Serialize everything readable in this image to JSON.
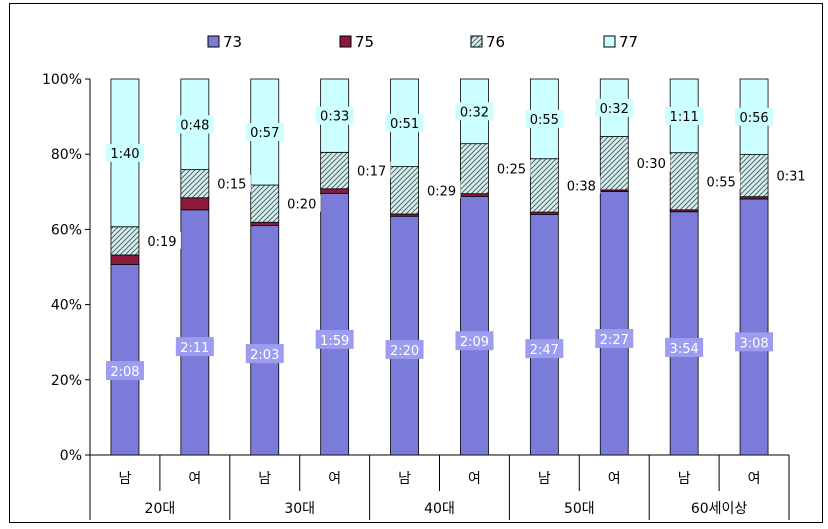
{
  "chart_data": {
    "type": "bar",
    "stacked": true,
    "percent_stacked": true,
    "groups": [
      "20대",
      "30대",
      "40대",
      "50대",
      "60세이상"
    ],
    "categories": [
      "남",
      "여",
      "남",
      "여",
      "남",
      "여",
      "남",
      "여",
      "남",
      "여"
    ],
    "y_ticks": [
      "0%",
      "20%",
      "40%",
      "60%",
      "80%",
      "100%"
    ],
    "ylim": [
      0,
      100
    ],
    "legend_position": "top",
    "series": [
      {
        "name": "73",
        "color": "#7b7bd9",
        "pattern": "solid",
        "values": [
          50.7,
          65.2,
          61.0,
          69.6,
          63.5,
          68.8,
          64.0,
          70.1,
          64.7,
          68.1
        ],
        "labels": [
          "2:08",
          "2:11",
          "2:03",
          "1:59",
          "2:20",
          "2:09",
          "2:47",
          "2:27",
          "3:54",
          "3:08"
        ]
      },
      {
        "name": "75",
        "color": "#8b1a3c",
        "pattern": "solid",
        "values": [
          2.5,
          3.2,
          0.9,
          1.2,
          0.6,
          0.7,
          0.6,
          0.4,
          0.5,
          0.6
        ],
        "labels": [
          "",
          "",
          "",
          "",
          "",
          "",
          "",
          "",
          "",
          ""
        ]
      },
      {
        "name": "76",
        "color": "#cfe8e8",
        "pattern": "hatch",
        "values": [
          7.5,
          7.5,
          9.9,
          9.7,
          12.6,
          13.3,
          14.2,
          14.2,
          15.2,
          11.2
        ],
        "labels": [
          "0:19",
          "0:15",
          "0:20",
          "0:17",
          "0:29",
          "0:25",
          "0:38",
          "0:30",
          "0:55",
          "0:31"
        ]
      },
      {
        "name": "77",
        "color": "#ccffff",
        "pattern": "solid",
        "values": [
          39.3,
          24.1,
          28.2,
          19.5,
          23.3,
          17.2,
          21.2,
          15.3,
          19.6,
          20.1
        ],
        "labels": [
          "1:40",
          "0:48",
          "0:57",
          "0:33",
          "0:51",
          "0:32",
          "0:55",
          "0:32",
          "1:11",
          "0:56"
        ]
      }
    ]
  }
}
